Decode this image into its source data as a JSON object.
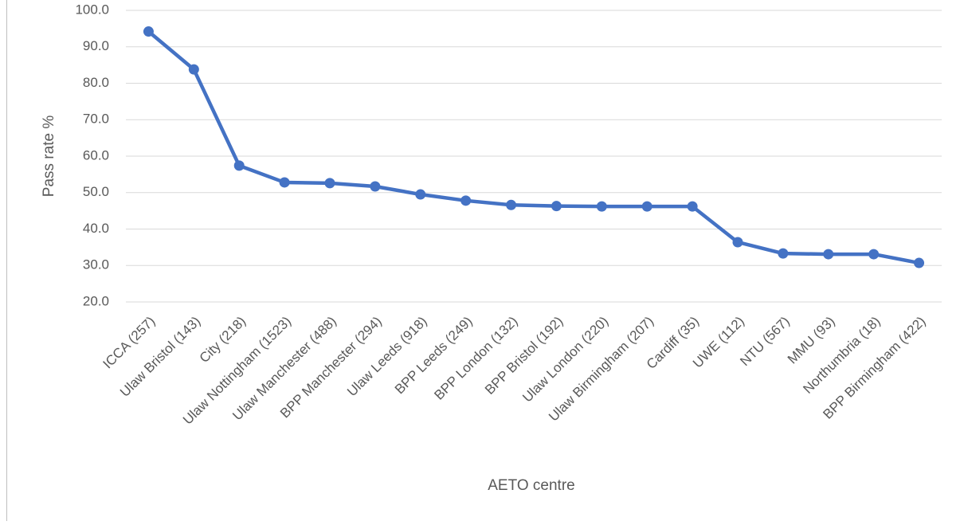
{
  "chart_data": {
    "type": "line",
    "x_label": "AETO centre",
    "y_label": "Pass rate %",
    "categories": [
      "ICCA (257)",
      "Ulaw Bristol (143)",
      "City (218)",
      "Ulaw Nottingham (1523)",
      "Ulaw Manchester (488)",
      "BPP Manchester (294)",
      "Ulaw Leeds (918)",
      "BPP Leeds (249)",
      "BPP London (132)",
      "BPP Bristol (192)",
      "Ulaw London (220)",
      "Ulaw Birmingham (207)",
      "Cardiff (35)",
      "UWE (112)",
      "NTU (567)",
      "MMU (93)",
      "Northumbria (18)",
      "BPP Birmingham (422)"
    ],
    "values": [
      94.2,
      83.8,
      57.4,
      52.8,
      52.6,
      51.7,
      49.5,
      47.8,
      46.6,
      46.3,
      46.2,
      46.2,
      46.2,
      36.4,
      33.3,
      33.1,
      33.1,
      30.7
    ],
    "color": "#4472c4",
    "ylim": [
      20,
      100
    ],
    "yticks": [
      {
        "value": 20,
        "label": "20.0"
      },
      {
        "value": 30,
        "label": "30.0"
      },
      {
        "value": 40,
        "label": "40.0"
      },
      {
        "value": 50,
        "label": "50.0"
      },
      {
        "value": 60,
        "label": "60.0"
      },
      {
        "value": 70,
        "label": "70.0"
      },
      {
        "value": 80,
        "label": "80.0"
      },
      {
        "value": 90,
        "label": "90.0"
      },
      {
        "value": 100,
        "label": "100.0"
      }
    ],
    "grid": true
  }
}
